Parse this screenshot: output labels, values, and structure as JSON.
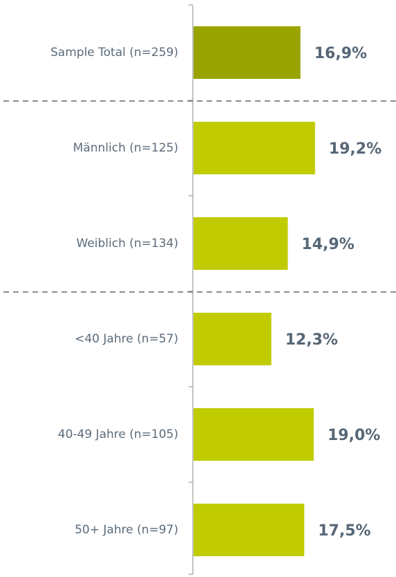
{
  "chart_data": {
    "type": "hbar",
    "categories": [
      "Sample Total (n=259)",
      "Männlich (n=125)",
      "Weiblich (n=134)",
      "<40 Jahre (n=57)",
      "40-49 Jahre (n=105)",
      "50+ Jahre (n=97)"
    ],
    "values": [
      16.9,
      19.2,
      14.9,
      12.3,
      19.0,
      17.5
    ],
    "value_labels": [
      "16,9%",
      "19,2%",
      "14,9%",
      "12,3%",
      "19,0%",
      "17,5%"
    ],
    "colors": [
      "#9aa400",
      "#c0cc00",
      "#c0cc00",
      "#c0cc00",
      "#c0cc00",
      "#c0cc00"
    ],
    "xlim": [
      0,
      32
    ]
  }
}
